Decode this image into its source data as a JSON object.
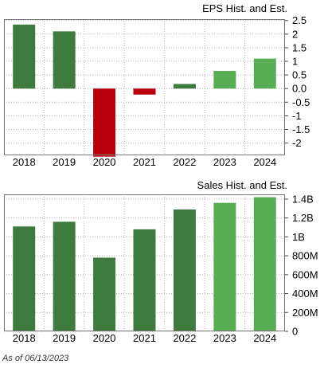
{
  "chart_data": [
    {
      "type": "bar",
      "title": "EPS Hist. and Est.",
      "categories": [
        "2018",
        "2019",
        "2020",
        "2021",
        "2022",
        "2023",
        "2024"
      ],
      "values": [
        2.35,
        2.1,
        -2.5,
        -0.22,
        0.17,
        0.65,
        1.1
      ],
      "estimate_flags": [
        false,
        false,
        false,
        false,
        false,
        true,
        true
      ],
      "ylim": [
        -2.45,
        2.55
      ],
      "yticks": [
        2.5,
        2,
        1.5,
        1,
        0.5,
        0.0,
        -0.5,
        -1,
        -1.5,
        -2
      ],
      "ytick_labels": [
        "2.5",
        "2",
        "1.5",
        "1",
        "0.5",
        "0.0",
        "-0.5",
        "-1",
        "-1.5",
        "-2"
      ],
      "grid": true
    },
    {
      "type": "bar",
      "title": "Sales Hist. and Est.",
      "categories": [
        "2018",
        "2019",
        "2020",
        "2021",
        "2022",
        "2023",
        "2024"
      ],
      "values": [
        1.11,
        1.16,
        0.78,
        1.08,
        1.29,
        1.36,
        1.42
      ],
      "value_unit": "B",
      "estimate_flags": [
        false,
        false,
        false,
        false,
        false,
        true,
        true
      ],
      "ylim": [
        0,
        1.45
      ],
      "yticks": [
        1.4,
        1.2,
        1.0,
        0.8,
        0.6,
        0.4,
        0.2,
        0
      ],
      "ytick_labels": [
        "1.4B",
        "1.2B",
        "1B",
        "800M",
        "600M",
        "400M",
        "200M",
        "0"
      ],
      "grid": true
    }
  ],
  "colors": {
    "historical": "#3f7a3f",
    "estimate": "#5aad57",
    "negative": "#b8000e",
    "plot_bg": "#ffffff",
    "grid": "#b3b3b3",
    "border": "#777777"
  },
  "footer": {
    "as_of": "As of 06/13/2023"
  }
}
